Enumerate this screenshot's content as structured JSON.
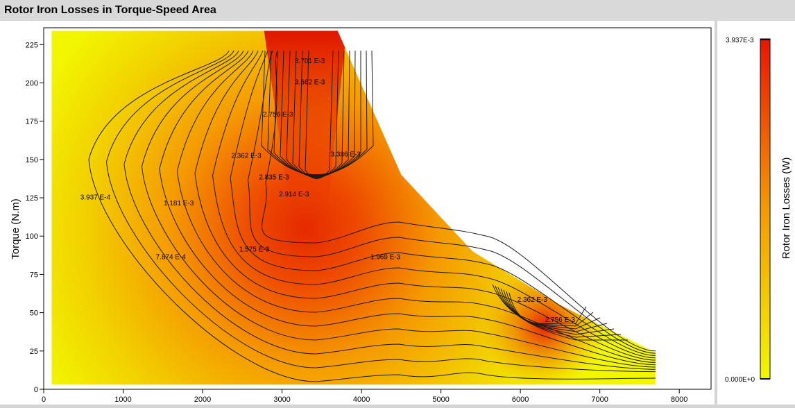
{
  "window": {
    "title": "Rotor Iron Losses in Torque-Speed Area"
  },
  "colors": {
    "low": "#f2f700",
    "mid": "#f59a00",
    "high": "#e81500",
    "contour": "#1a1a1a",
    "panel_bg": "#d4d4d4"
  },
  "colorbar": {
    "title": "Rotor Iron Losses (W)",
    "max_label": "3.937E-3",
    "min_label": "0.000E+0"
  },
  "chart_data": {
    "type": "heatmap",
    "title": "Rotor Iron Losses in Torque-Speed Area",
    "xlabel": "",
    "ylabel": "Torque (N.m)",
    "xlim": [
      0,
      8400
    ],
    "ylim": [
      0,
      236
    ],
    "x_ticks": [
      "0",
      "1000",
      "2000",
      "3000",
      "4000",
      "5000",
      "6000",
      "7000",
      "8000"
    ],
    "y_ticks": [
      "0",
      "25",
      "50",
      "75",
      "100",
      "125",
      "150",
      "175",
      "200",
      "225"
    ],
    "grid": false,
    "colorbar_range": [
      0.0,
      0.003937
    ],
    "envelope": [
      [
        100,
        3
      ],
      [
        100,
        234
      ],
      [
        3700,
        234
      ],
      [
        4500,
        140
      ],
      [
        5400,
        90
      ],
      [
        6500,
        55
      ],
      [
        7700,
        24
      ],
      [
        7700,
        3
      ]
    ],
    "contour_labels": [
      {
        "text": "3.937 E-4",
        "x": 650,
        "y": 124
      },
      {
        "text": "7.874 E-4",
        "x": 1600,
        "y": 85
      },
      {
        "text": "1.181 E-3",
        "x": 1700,
        "y": 120
      },
      {
        "text": "1.575 E-3",
        "x": 2650,
        "y": 90
      },
      {
        "text": "1.969 E-3",
        "x": 4300,
        "y": 85
      },
      {
        "text": "2.362 E-3",
        "x": 2550,
        "y": 151
      },
      {
        "text": "2.756 E-3",
        "x": 2950,
        "y": 178
      },
      {
        "text": "2.835 E-3",
        "x": 2900,
        "y": 137
      },
      {
        "text": "2.914 E-3",
        "x": 3150,
        "y": 126
      },
      {
        "text": "3.386 E-3",
        "x": 3800,
        "y": 152
      },
      {
        "text": "3.662 E-3",
        "x": 3350,
        "y": 199
      },
      {
        "text": "3.701 E-3",
        "x": 3350,
        "y": 213
      },
      {
        "text": "2.362 E-3",
        "x": 6150,
        "y": 57
      },
      {
        "text": "2.756 E-3",
        "x": 6500,
        "y": 44
      }
    ]
  }
}
